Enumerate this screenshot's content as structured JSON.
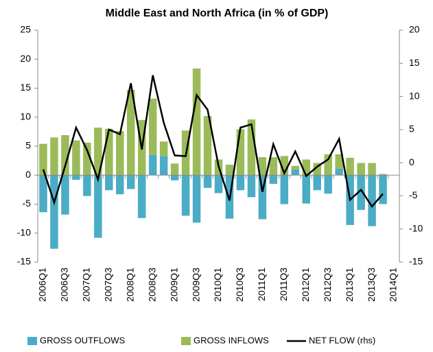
{
  "chart_data": {
    "type": "bar",
    "title": "Middle East and North Africa (in % of GDP)",
    "categories": [
      "2006Q1",
      null,
      "2006Q3",
      null,
      "2007Q1",
      null,
      "2007Q3",
      null,
      "2008Q1",
      null,
      "2008Q3",
      null,
      "2009Q1",
      null,
      "2009Q3",
      null,
      "2010Q1",
      null,
      "2010Q3",
      null,
      "2011Q1",
      null,
      "2011Q3",
      null,
      "2012Q1",
      null,
      "2012Q3",
      null,
      "2013Q1",
      null,
      "2013Q3",
      null,
      "2014Q1"
    ],
    "series": [
      {
        "name": "GROSS OUTFLOWS",
        "type": "bar",
        "color": "#4bacc6",
        "values": [
          -6.4,
          -12.7,
          -6.8,
          -0.8,
          -3.6,
          -10.8,
          -2.6,
          -3.3,
          -2.4,
          -7.4,
          3.5,
          3.3,
          -0.9,
          -7.0,
          -8.2,
          -2.2,
          -3.1,
          -7.5,
          -2.6,
          -3.8,
          -7.6,
          -1.5,
          -5.0,
          1.0,
          -4.9,
          -2.6,
          -3.2,
          1.1,
          -8.6,
          -6.0,
          -8.8,
          -5.0,
          null
        ]
      },
      {
        "name": "GROSS INFLOWS",
        "type": "bar",
        "color": "#9bbb59",
        "values": [
          5.4,
          6.5,
          6.9,
          6.0,
          5.6,
          8.2,
          8.0,
          7.6,
          14.7,
          9.5,
          9.7,
          2.5,
          2.0,
          7.7,
          18.4,
          10.2,
          2.7,
          1.8,
          7.9,
          9.6,
          3.1,
          3.1,
          3.3,
          0.6,
          2.7,
          2.1,
          3.6,
          2.5,
          3.0,
          2.1,
          2.1,
          0.2,
          null
        ]
      },
      {
        "name": "NET FLOW (rhs)",
        "type": "line",
        "axis": "y2",
        "color": "#000000",
        "values": [
          -1.0,
          -6.0,
          -0.5,
          5.3,
          1.9,
          -2.5,
          5.0,
          4.3,
          12.0,
          2.0,
          13.2,
          6.0,
          1.1,
          1.0,
          10.2,
          8.0,
          -0.5,
          -5.7,
          5.3,
          5.8,
          -4.4,
          2.8,
          -1.6,
          1.7,
          -2.0,
          -0.6,
          0.5,
          3.6,
          -5.6,
          -4.1,
          -6.6,
          -4.7,
          null
        ]
      }
    ],
    "ylim": [
      -15,
      25
    ],
    "yticks": [
      -15,
      -10,
      -5,
      0,
      5,
      10,
      15,
      20,
      25
    ],
    "y2lim": [
      -15,
      20
    ],
    "y2ticks": [
      -15,
      -10,
      -5,
      0,
      5,
      10,
      15,
      20
    ],
    "legend": "bottom"
  }
}
